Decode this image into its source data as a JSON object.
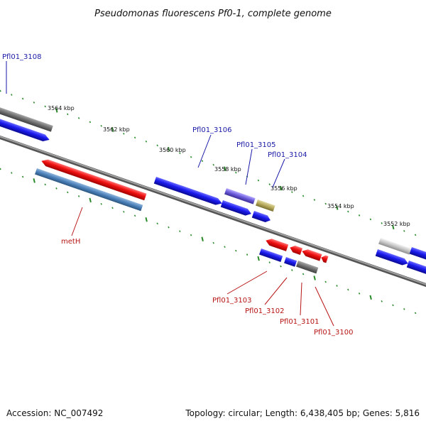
{
  "title": "Pseudomonas fluorescens Pf0-1, complete genome",
  "footer": {
    "accession": "Accession: NC_007492",
    "summary": "Topology: circular; Length: 6,438,405 bp; Genes: 5,816"
  },
  "colors": {
    "forward_gene": "#1414e6",
    "reverse_gene": "#e01414",
    "backbone": "#808080",
    "tick": "#2a8a2a",
    "label_forward": "#1a1aa8",
    "label_reverse": "#b81414"
  },
  "scale_labels": [
    "3564 kbp",
    "3562 kbp",
    "3560 kbp",
    "3558 kbp",
    "3556 kbp",
    "3554 kbp",
    "3552 kbp"
  ],
  "gene_labels": {
    "forward": [
      "Pfl01_3108",
      "Pfl01_3106",
      "Pfl01_3105",
      "Pfl01_3104"
    ],
    "reverse": [
      "metH",
      "Pfl01_3103",
      "Pfl01_3102",
      "Pfl01_3101",
      "Pfl01_3100"
    ]
  }
}
